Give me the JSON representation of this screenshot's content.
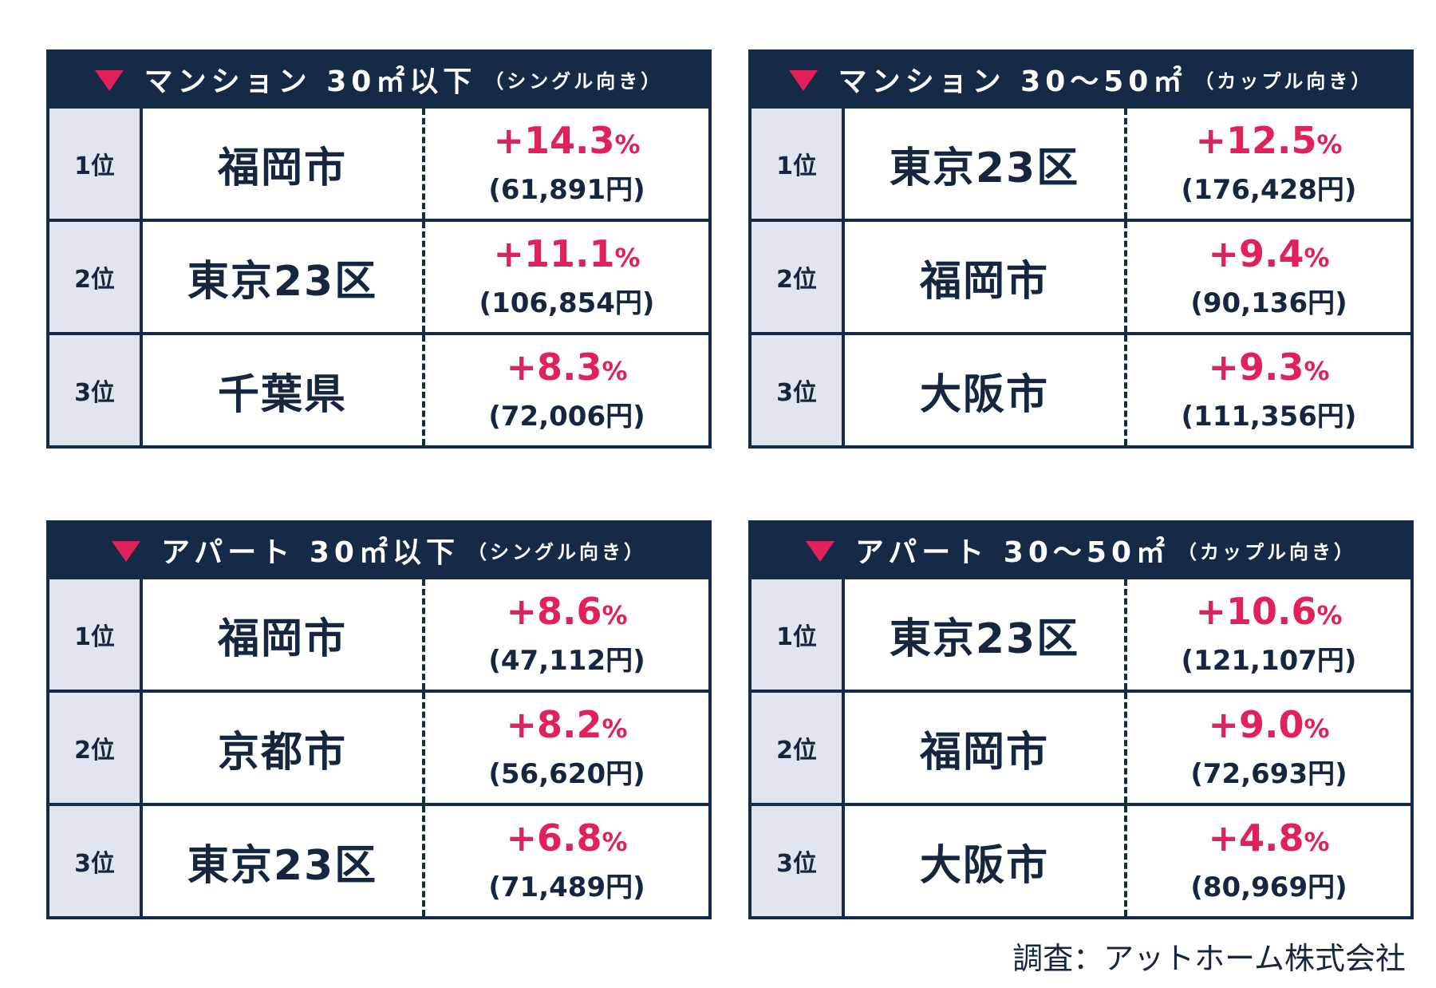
{
  "panels": [
    {
      "title_main": "マンション 30㎡以下",
      "title_sub": "（シングル向き）",
      "rows": [
        {
          "rank": "1位",
          "city": "福岡市",
          "pct_value": "+14.3",
          "pct_sign": "%",
          "yen": "(61,891円)"
        },
        {
          "rank": "2位",
          "city": "東京23区",
          "pct_value": "+11.1",
          "pct_sign": "%",
          "yen": "(106,854円)"
        },
        {
          "rank": "3位",
          "city": "千葉県",
          "pct_value": "+8.3",
          "pct_sign": "%",
          "yen": "(72,006円)"
        }
      ]
    },
    {
      "title_main": "マンション 30～50㎡",
      "title_sub": "（カップル向き）",
      "rows": [
        {
          "rank": "1位",
          "city": "東京23区",
          "pct_value": "+12.5",
          "pct_sign": "%",
          "yen": "(176,428円)"
        },
        {
          "rank": "2位",
          "city": "福岡市",
          "pct_value": "+9.4",
          "pct_sign": "%",
          "yen": "(90,136円)"
        },
        {
          "rank": "3位",
          "city": "大阪市",
          "pct_value": "+9.3",
          "pct_sign": "%",
          "yen": "(111,356円)"
        }
      ]
    },
    {
      "title_main": "アパート 30㎡以下",
      "title_sub": "（シングル向き）",
      "rows": [
        {
          "rank": "1位",
          "city": "福岡市",
          "pct_value": "+8.6",
          "pct_sign": "%",
          "yen": "(47,112円)"
        },
        {
          "rank": "2位",
          "city": "京都市",
          "pct_value": "+8.2",
          "pct_sign": "%",
          "yen": "(56,620円)"
        },
        {
          "rank": "3位",
          "city": "東京23区",
          "pct_value": "+6.8",
          "pct_sign": "%",
          "yen": "(71,489円)"
        }
      ]
    },
    {
      "title_main": "アパート 30～50㎡",
      "title_sub": "（カップル向き）",
      "rows": [
        {
          "rank": "1位",
          "city": "東京23区",
          "pct_value": "+10.6",
          "pct_sign": "%",
          "yen": "(121,107円)"
        },
        {
          "rank": "2位",
          "city": "福岡市",
          "pct_value": "+9.0",
          "pct_sign": "%",
          "yen": "(72,693円)"
        },
        {
          "rank": "3位",
          "city": "大阪市",
          "pct_value": "+4.8",
          "pct_sign": "%",
          "yen": "(80,969円)"
        }
      ]
    }
  ],
  "source": "調査：アットホーム株式会社",
  "colors": {
    "navy": "#142a47",
    "accent": "#e0215a",
    "rank_bg": "#e1e6ee"
  }
}
